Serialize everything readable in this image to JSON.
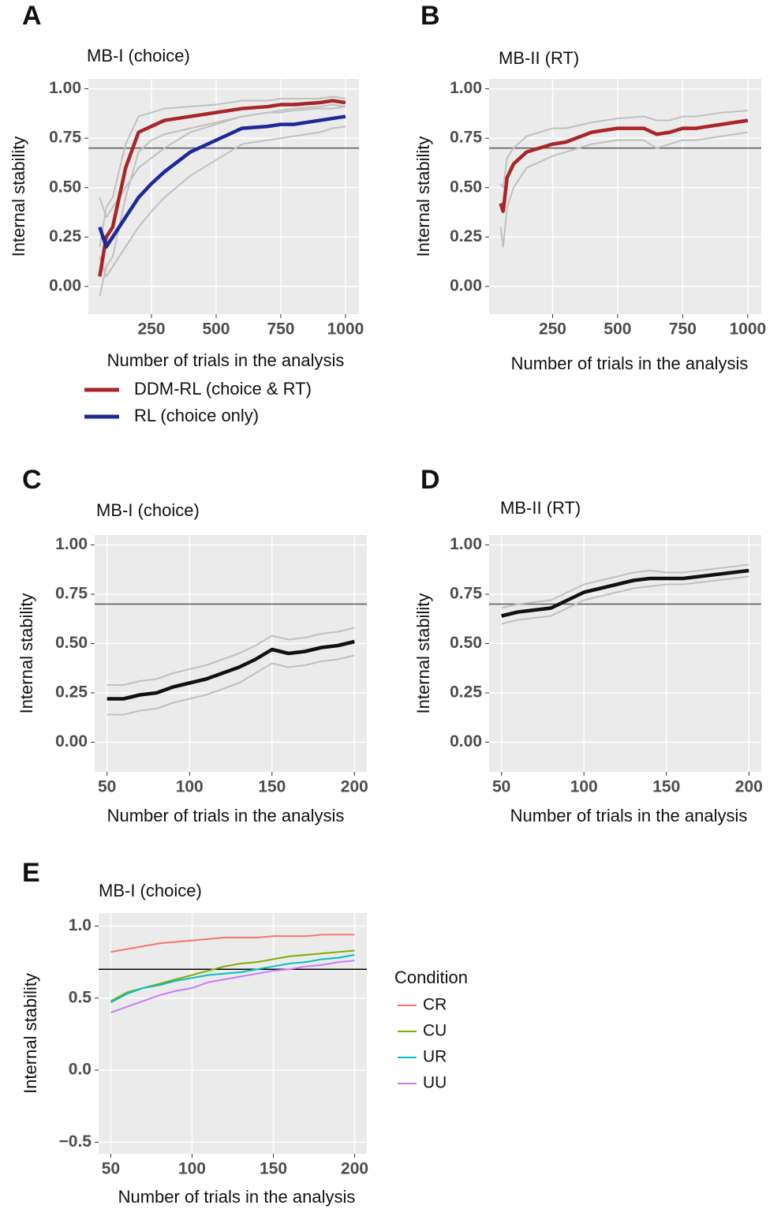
{
  "chart_data": [
    {
      "type": "line",
      "panel": "A",
      "title": "MB-I (choice)",
      "xlabel": "Number of trials in the analysis",
      "ylabel": "Internal stability",
      "xlim": [
        6,
        1052
      ],
      "ylim": [
        -0.14,
        1.05
      ],
      "xticks": [
        250,
        500,
        750,
        1000
      ],
      "yticks": [
        {
          "value": 0,
          "label": "0.00"
        },
        0.25,
        {
          "value": 0.5,
          "label": "0.50"
        },
        0.75,
        {
          "value": 1,
          "label": "1.00"
        }
      ],
      "grid": true,
      "hline": 0.7,
      "hline_color": "#555555",
      "band_color": "#c0c0c0",
      "legend": "bottom",
      "x": [
        50,
        75,
        100,
        150,
        200,
        250,
        300,
        400,
        500,
        600,
        700,
        750,
        800,
        900,
        950,
        1000
      ],
      "series": [
        {
          "name": "DDM-RL (choice & RT)",
          "color": "#a8262a",
          "values": [
            0.05,
            0.25,
            0.3,
            0.6,
            0.78,
            0.81,
            0.84,
            0.86,
            0.88,
            0.9,
            0.91,
            0.92,
            0.92,
            0.93,
            0.94,
            0.93
          ],
          "lower": [
            -0.05,
            0.1,
            0.15,
            0.45,
            0.68,
            0.74,
            0.77,
            0.8,
            0.83,
            0.86,
            0.88,
            0.89,
            0.9,
            0.91,
            0.92,
            0.91
          ],
          "upper": [
            0.2,
            0.4,
            0.45,
            0.72,
            0.86,
            0.88,
            0.9,
            0.91,
            0.92,
            0.94,
            0.94,
            0.95,
            0.95,
            0.95,
            0.96,
            0.95
          ]
        },
        {
          "name": "RL (choice only)",
          "color": "#1c2a96",
          "values": [
            0.3,
            0.2,
            0.25,
            0.35,
            0.45,
            0.52,
            0.58,
            0.68,
            0.74,
            0.8,
            0.81,
            0.82,
            0.82,
            0.84,
            0.85,
            0.86
          ],
          "lower": [
            0.15,
            0.05,
            0.1,
            0.2,
            0.3,
            0.38,
            0.45,
            0.56,
            0.64,
            0.72,
            0.74,
            0.75,
            0.76,
            0.78,
            0.8,
            0.81
          ],
          "upper": [
            0.45,
            0.35,
            0.4,
            0.5,
            0.6,
            0.65,
            0.7,
            0.78,
            0.82,
            0.86,
            0.88,
            0.88,
            0.89,
            0.9,
            0.9,
            0.91
          ]
        }
      ]
    },
    {
      "type": "line",
      "panel": "B",
      "title": "MB-II (RT)",
      "xlabel": "Number of trials in the analysis",
      "ylabel": "Internal stability",
      "xlim": [
        6,
        1052
      ],
      "ylim": [
        -0.14,
        1.05
      ],
      "xticks": [
        250,
        500,
        750,
        1000
      ],
      "yticks": [
        {
          "value": 0,
          "label": "0.00"
        },
        0.25,
        {
          "value": 0.5,
          "label": "0.50"
        },
        0.75,
        {
          "value": 1,
          "label": "1.00"
        }
      ],
      "grid": true,
      "hline": 0.7,
      "hline_color": "#555555",
      "band_color": "#c0c0c0",
      "x": [
        50,
        60,
        75,
        100,
        150,
        200,
        250,
        300,
        400,
        500,
        600,
        650,
        700,
        750,
        800,
        900,
        1000
      ],
      "series": [
        {
          "color": "#a8262a",
          "values": [
            0.42,
            0.38,
            0.55,
            0.62,
            0.68,
            0.7,
            0.72,
            0.73,
            0.78,
            0.8,
            0.8,
            0.77,
            0.78,
            0.8,
            0.8,
            0.82,
            0.84
          ],
          "lower": [
            0.3,
            0.2,
            0.4,
            0.5,
            0.6,
            0.63,
            0.66,
            0.68,
            0.72,
            0.74,
            0.74,
            0.7,
            0.72,
            0.74,
            0.74,
            0.76,
            0.78
          ],
          "upper": [
            0.52,
            0.5,
            0.65,
            0.7,
            0.76,
            0.78,
            0.8,
            0.8,
            0.83,
            0.85,
            0.86,
            0.84,
            0.84,
            0.86,
            0.86,
            0.88,
            0.89
          ]
        }
      ]
    },
    {
      "type": "line",
      "panel": "C",
      "title": "MB-I (choice)",
      "xlabel": "Number of trials in the analysis",
      "ylabel": "Internal stability",
      "xlim": [
        42.5,
        207.5
      ],
      "ylim": [
        -0.15,
        1.05
      ],
      "xticks": [
        50,
        100,
        150,
        200
      ],
      "yticks": [
        {
          "value": 0,
          "label": "0.00"
        },
        0.25,
        {
          "value": 0.5,
          "label": "0.50"
        },
        0.75,
        {
          "value": 1,
          "label": "1.00"
        }
      ],
      "grid": true,
      "hline": 0.7,
      "hline_color": "#555555",
      "band_color": "#c0c0c0",
      "x": [
        50,
        60,
        70,
        80,
        90,
        100,
        110,
        120,
        130,
        140,
        150,
        160,
        170,
        180,
        190,
        200
      ],
      "series": [
        {
          "color": "#111111",
          "values": [
            0.22,
            0.22,
            0.24,
            0.25,
            0.28,
            0.3,
            0.32,
            0.35,
            0.38,
            0.42,
            0.47,
            0.45,
            0.46,
            0.48,
            0.49,
            0.51
          ],
          "lower": [
            0.14,
            0.14,
            0.16,
            0.17,
            0.2,
            0.22,
            0.24,
            0.27,
            0.3,
            0.35,
            0.4,
            0.38,
            0.39,
            0.41,
            0.42,
            0.44
          ],
          "upper": [
            0.29,
            0.29,
            0.31,
            0.32,
            0.35,
            0.37,
            0.39,
            0.42,
            0.45,
            0.49,
            0.54,
            0.52,
            0.53,
            0.55,
            0.56,
            0.58
          ]
        }
      ]
    },
    {
      "type": "line",
      "panel": "D",
      "title": "MB-II (RT)",
      "xlabel": "Number of trials in the analysis",
      "ylabel": "Internal stability",
      "xlim": [
        42.5,
        207.5
      ],
      "ylim": [
        -0.15,
        1.05
      ],
      "xticks": [
        50,
        100,
        150,
        200
      ],
      "yticks": [
        {
          "value": 0,
          "label": "0.00"
        },
        0.25,
        {
          "value": 0.5,
          "label": "0.50"
        },
        0.75,
        {
          "value": 1,
          "label": "1.00"
        }
      ],
      "grid": true,
      "hline": 0.7,
      "hline_color": "#555555",
      "band_color": "#c0c0c0",
      "x": [
        50,
        60,
        70,
        80,
        90,
        100,
        110,
        120,
        130,
        140,
        150,
        160,
        170,
        180,
        190,
        200
      ],
      "series": [
        {
          "color": "#111111",
          "values": [
            0.64,
            0.66,
            0.67,
            0.68,
            0.72,
            0.76,
            0.78,
            0.8,
            0.82,
            0.83,
            0.83,
            0.83,
            0.84,
            0.85,
            0.86,
            0.87
          ],
          "lower": [
            0.6,
            0.62,
            0.63,
            0.64,
            0.68,
            0.72,
            0.74,
            0.76,
            0.78,
            0.79,
            0.8,
            0.8,
            0.81,
            0.82,
            0.83,
            0.84
          ],
          "upper": [
            0.68,
            0.7,
            0.71,
            0.72,
            0.76,
            0.8,
            0.82,
            0.84,
            0.86,
            0.87,
            0.86,
            0.86,
            0.87,
            0.88,
            0.89,
            0.9
          ]
        }
      ]
    },
    {
      "type": "line",
      "panel": "E",
      "title": "MB-I (choice)",
      "xlabel": "Number of trials in the analysis",
      "ylabel": "Internal stability",
      "xlim": [
        42.5,
        207.5
      ],
      "ylim": [
        -0.58,
        1.09
      ],
      "xticks": [
        50,
        100,
        150,
        200
      ],
      "yticks": [
        {
          "value": -0.5,
          "label": "−0.5"
        },
        {
          "value": 0,
          "label": "0.0"
        },
        0.5,
        {
          "value": 1,
          "label": "1.0"
        }
      ],
      "grid": true,
      "hline": 0.7,
      "hline_color": "#000000",
      "legend": "right",
      "legend_title": "Condition",
      "x": [
        50,
        60,
        70,
        80,
        90,
        100,
        110,
        120,
        130,
        140,
        150,
        160,
        170,
        180,
        190,
        200
      ],
      "series": [
        {
          "name": "CR",
          "color": "#f8766d",
          "values": [
            0.82,
            0.84,
            0.86,
            0.88,
            0.89,
            0.9,
            0.91,
            0.92,
            0.92,
            0.92,
            0.93,
            0.93,
            0.93,
            0.94,
            0.94,
            0.94
          ]
        },
        {
          "name": "CU",
          "color": "#7cae00",
          "values": [
            0.48,
            0.54,
            0.57,
            0.6,
            0.63,
            0.66,
            0.69,
            0.72,
            0.74,
            0.75,
            0.77,
            0.79,
            0.8,
            0.81,
            0.82,
            0.83
          ]
        },
        {
          "name": "UR",
          "color": "#00bfc4",
          "values": [
            0.47,
            0.53,
            0.57,
            0.59,
            0.62,
            0.64,
            0.66,
            0.67,
            0.68,
            0.7,
            0.72,
            0.74,
            0.75,
            0.77,
            0.78,
            0.8
          ]
        },
        {
          "name": "UU",
          "color": "#c77cff",
          "values": [
            0.4,
            0.44,
            0.48,
            0.52,
            0.55,
            0.57,
            0.61,
            0.63,
            0.65,
            0.67,
            0.69,
            0.7,
            0.72,
            0.73,
            0.75,
            0.76
          ]
        }
      ]
    }
  ]
}
